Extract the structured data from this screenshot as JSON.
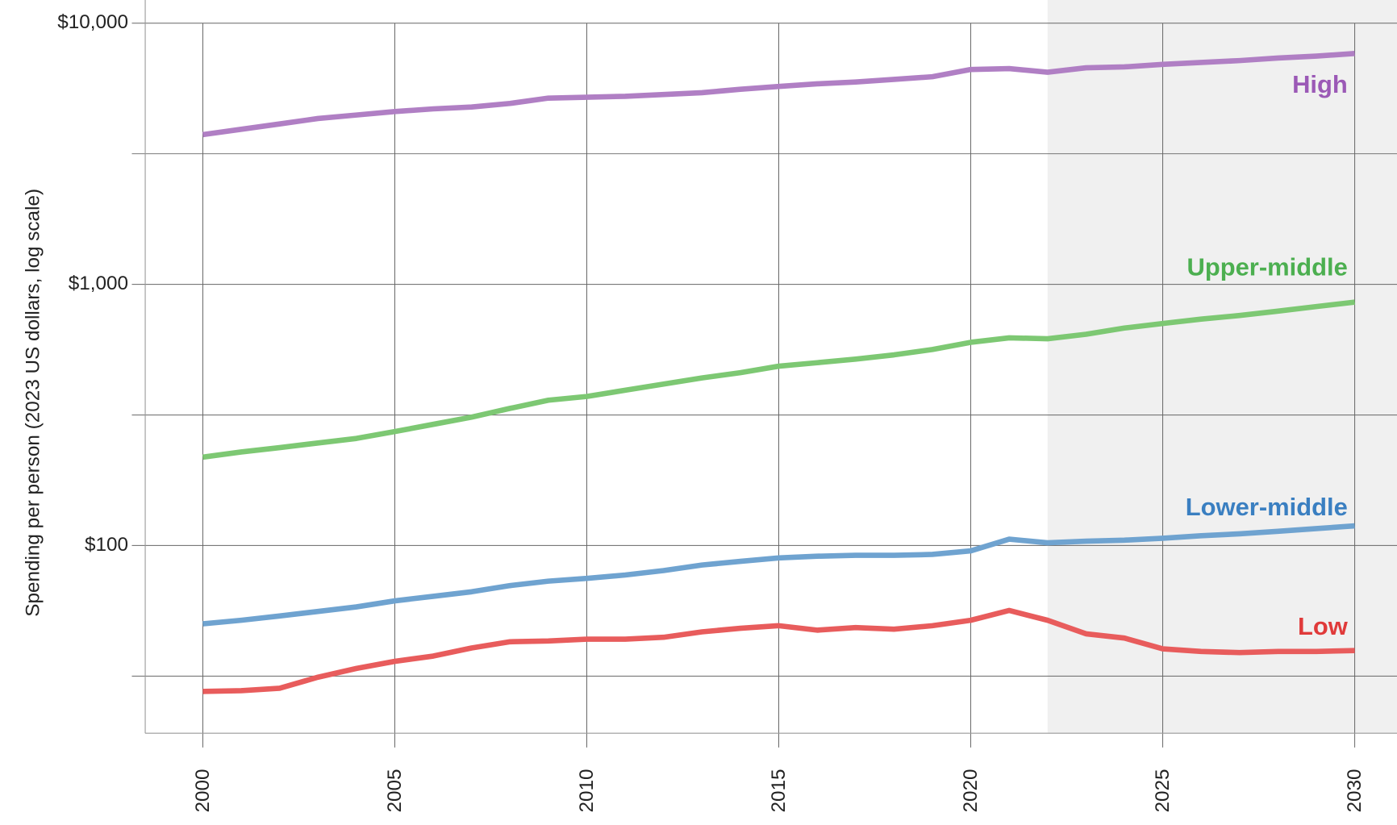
{
  "chart_data": {
    "type": "line",
    "title": "",
    "xlabel": "",
    "ylabel": "Spending per person (2023 US dollars, log scale)",
    "y_scale": "log",
    "xlim": [
      1998.5,
      2031.1
    ],
    "ylim": [
      19.1,
      12270
    ],
    "grid": true,
    "legend": "inline labels at right end of lines",
    "x_ticks": [
      2000,
      2005,
      2010,
      2015,
      2020,
      2025,
      2030
    ],
    "x_tick_labels": [
      "2000",
      "2005",
      "2010",
      "2015",
      "2020",
      "2025",
      "2030"
    ],
    "y_ticks": [
      10000,
      1000,
      100
    ],
    "y_tick_labels": [
      "$10,000",
      "$1,000",
      "$100"
    ],
    "y_minor_gridlines": [
      3162,
      316,
      31.6
    ],
    "projection_shading": {
      "from": 2022,
      "to": 2031.1,
      "color": "#f0f0f0"
    },
    "x": [
      2000,
      2001,
      2002,
      2003,
      2004,
      2005,
      2006,
      2007,
      2008,
      2009,
      2010,
      2011,
      2012,
      2013,
      2014,
      2015,
      2016,
      2017,
      2018,
      2019,
      2020,
      2021,
      2022,
      2023,
      2024,
      2025,
      2026,
      2027,
      2028,
      2029,
      2030
    ],
    "series": [
      {
        "name": "High",
        "color": "#b07fc4",
        "label_color": "#9b59b6",
        "values": [
          3743,
          3926,
          4114,
          4315,
          4449,
          4590,
          4700,
          4775,
          4930,
          5165,
          5207,
          5250,
          5333,
          5420,
          5585,
          5725,
          5860,
          5955,
          6095,
          6240,
          6650,
          6700,
          6490,
          6750,
          6800,
          6960,
          7075,
          7190,
          7360,
          7480,
          7660
        ]
      },
      {
        "name": "Upper-middle",
        "color": "#7dc873",
        "label_color": "#4caf50",
        "values": [
          218,
          228,
          237,
          247,
          257,
          273,
          291,
          310,
          335,
          360,
          372,
          393,
          415,
          438,
          459,
          486,
          501,
          517,
          537,
          563,
          600,
          624,
          619,
          644,
          680,
          708,
          736,
          760,
          790,
          822,
          855
        ]
      },
      {
        "name": "Lower-middle",
        "color": "#6fa3d0",
        "label_color": "#3a7fc1",
        "values": [
          50.1,
          51.7,
          53.7,
          55.9,
          58.2,
          61.4,
          63.9,
          66.5,
          70.2,
          73.0,
          74.8,
          77.1,
          80.2,
          84.2,
          86.9,
          89.6,
          91.0,
          91.7,
          91.7,
          92.4,
          95.4,
          105.7,
          102.4,
          103.9,
          104.8,
          106.5,
          109.0,
          110.8,
          113.4,
          116.1,
          118.9
        ]
      },
      {
        "name": "Low",
        "color": "#e85c5c",
        "label_color": "#e03a3a",
        "values": [
          27.6,
          27.8,
          28.4,
          31.3,
          33.8,
          36.0,
          37.7,
          40.5,
          42.8,
          43.1,
          43.8,
          43.8,
          44.5,
          46.7,
          48.2,
          49.3,
          47.4,
          48.5,
          47.8,
          49.3,
          51.7,
          56.4,
          51.7,
          45.9,
          44.2,
          40.2,
          39.3,
          38.9,
          39.3,
          39.3,
          39.6
        ]
      }
    ]
  }
}
